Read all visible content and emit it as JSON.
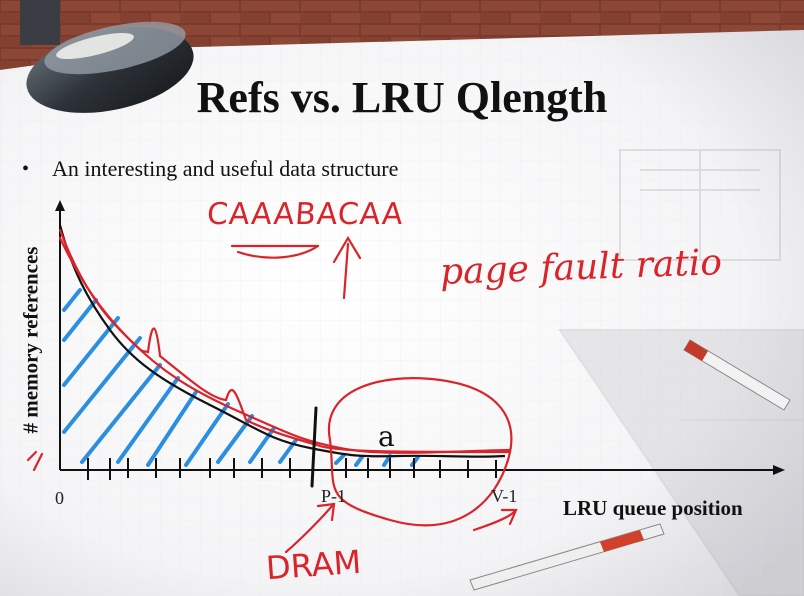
{
  "slide": {
    "title": "Refs vs. LRU Qlength",
    "bullet": "An interesting and useful data structure"
  },
  "axes": {
    "y_label": "# memory references",
    "x_label": "LRU queue position",
    "x_ticks": [
      "0",
      "P-1",
      "V-1"
    ]
  },
  "annotations": {
    "sequence": "CAAABACAA",
    "page_fault_ratio": "page fault ratio",
    "dram": "DRAM",
    "region": "a"
  },
  "colors": {
    "ink_red": "#d8242a",
    "ink_blue": "#2a8fe0",
    "curve_black": "#111111"
  }
}
